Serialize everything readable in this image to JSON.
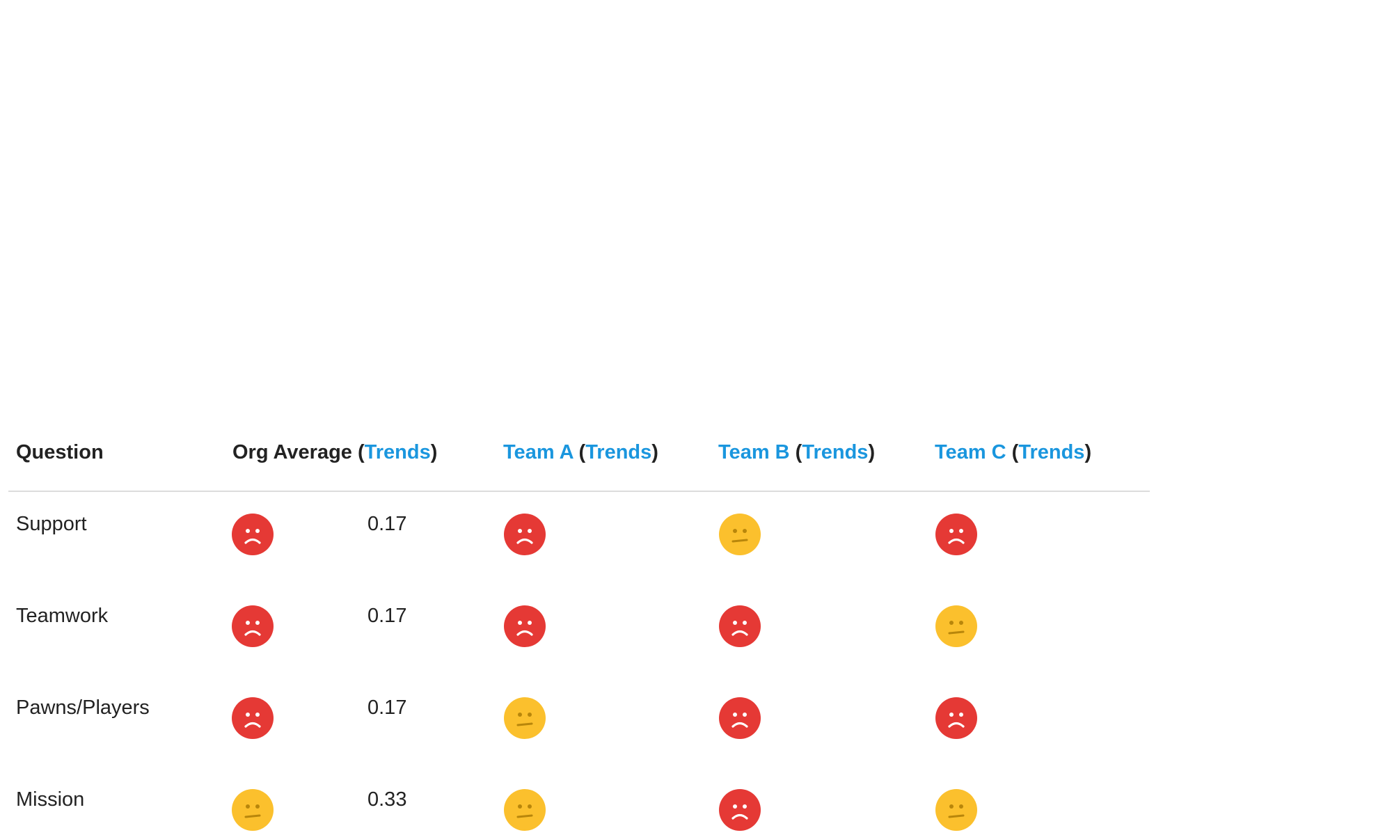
{
  "colors": {
    "link": "#1a96de",
    "sad": "#e53935",
    "neutral": "#fbc02d",
    "divider": "#dcdcdc"
  },
  "header": {
    "question": "Question",
    "org_label": "Org Average",
    "team_a": "Team A",
    "team_b": "Team B",
    "team_c": "Team C",
    "trends": "Trends",
    "open_paren": "(",
    "close_paren": ")"
  },
  "rows": [
    {
      "question": "Support",
      "org_icon": "sad-face-icon",
      "org_value": "0.17",
      "team_a_icon": "sad-face-icon",
      "team_b_icon": "neutral-face-icon",
      "team_c_icon": "sad-face-icon"
    },
    {
      "question": "Teamwork",
      "org_icon": "sad-face-icon",
      "org_value": "0.17",
      "team_a_icon": "sad-face-icon",
      "team_b_icon": "sad-face-icon",
      "team_c_icon": "neutral-face-icon"
    },
    {
      "question": "Pawns/Players",
      "org_icon": "sad-face-icon",
      "org_value": "0.17",
      "team_a_icon": "neutral-face-icon",
      "team_b_icon": "sad-face-icon",
      "team_c_icon": "sad-face-icon"
    },
    {
      "question": "Mission",
      "org_icon": "neutral-face-icon",
      "org_value": "0.33",
      "team_a_icon": "neutral-face-icon",
      "team_b_icon": "sad-face-icon",
      "team_c_icon": "neutral-face-icon"
    }
  ]
}
